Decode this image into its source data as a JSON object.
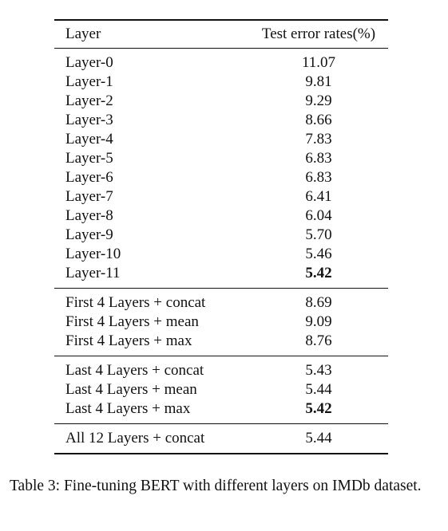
{
  "table": {
    "headers": {
      "layer": "Layer",
      "error": "Test error rates(%)"
    },
    "groups": [
      {
        "rows": [
          {
            "layer": "Layer-0",
            "error": "11.07",
            "bold": false
          },
          {
            "layer": "Layer-1",
            "error": "9.81",
            "bold": false
          },
          {
            "layer": "Layer-2",
            "error": "9.29",
            "bold": false
          },
          {
            "layer": "Layer-3",
            "error": "8.66",
            "bold": false
          },
          {
            "layer": "Layer-4",
            "error": "7.83",
            "bold": false
          },
          {
            "layer": "Layer-5",
            "error": "6.83",
            "bold": false
          },
          {
            "layer": "Layer-6",
            "error": "6.83",
            "bold": false
          },
          {
            "layer": "Layer-7",
            "error": "6.41",
            "bold": false
          },
          {
            "layer": "Layer-8",
            "error": "6.04",
            "bold": false
          },
          {
            "layer": "Layer-9",
            "error": "5.70",
            "bold": false
          },
          {
            "layer": "Layer-10",
            "error": "5.46",
            "bold": false
          },
          {
            "layer": "Layer-11",
            "error": "5.42",
            "bold": true
          }
        ]
      },
      {
        "rows": [
          {
            "layer": "First 4 Layers + concat",
            "error": "8.69",
            "bold": false
          },
          {
            "layer": "First 4 Layers + mean",
            "error": "9.09",
            "bold": false
          },
          {
            "layer": "First 4 Layers + max",
            "error": "8.76",
            "bold": false
          }
        ]
      },
      {
        "rows": [
          {
            "layer": "Last 4 Layers + concat",
            "error": "5.43",
            "bold": false
          },
          {
            "layer": "Last 4 Layers + mean",
            "error": "5.44",
            "bold": false
          },
          {
            "layer": "Last 4 Layers + max",
            "error": "5.42",
            "bold": true
          }
        ]
      },
      {
        "rows": [
          {
            "layer": "All 12 Layers + concat",
            "error": "5.44",
            "bold": false
          }
        ]
      }
    ]
  },
  "caption": "Table 3: Fine-tuning BERT with different layers on IMDb dataset."
}
